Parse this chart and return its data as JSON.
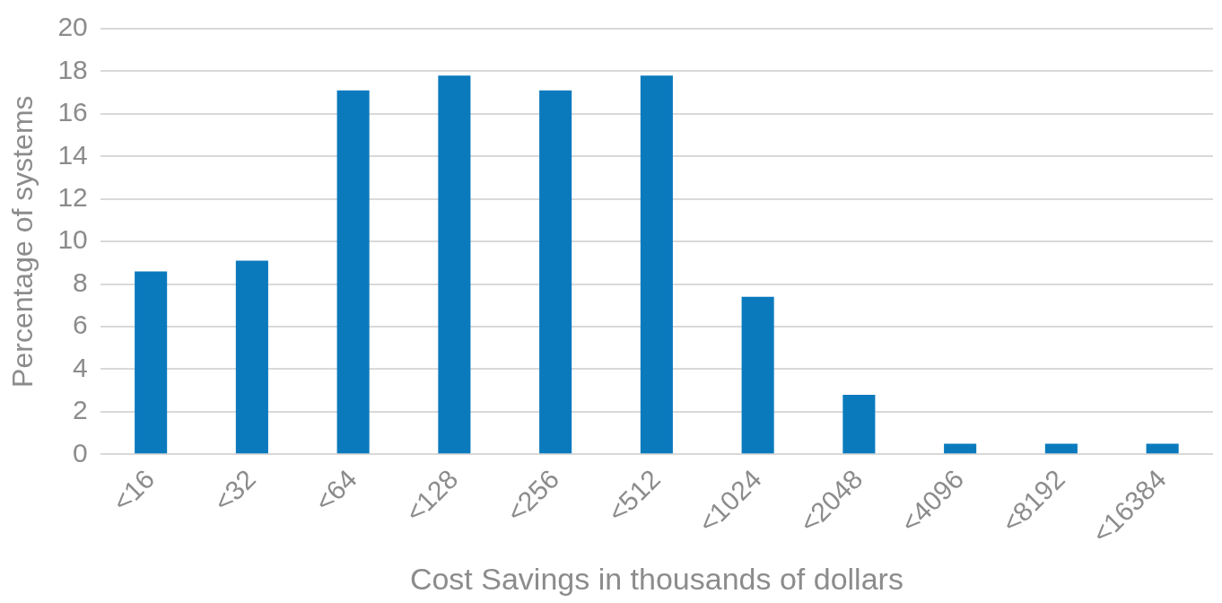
{
  "chart_data": {
    "type": "bar",
    "xlabel": "Cost Savings in thousands of dollars",
    "ylabel": "Percentage of systems",
    "categories": [
      "<16",
      "<32",
      "<64",
      "<128",
      "<256",
      "<512",
      "<1024",
      "<2048",
      "<4096",
      "<8192",
      "<16384"
    ],
    "values": [
      8.6,
      9.1,
      17.1,
      17.8,
      17.1,
      17.8,
      7.4,
      2.8,
      0.5,
      0.5,
      0.5
    ],
    "color": "#0a7abd",
    "ylim": [
      0,
      20
    ],
    "yticks": [
      0,
      2,
      4,
      6,
      8,
      10,
      12,
      14,
      16,
      18,
      20
    ],
    "grid": "y"
  }
}
